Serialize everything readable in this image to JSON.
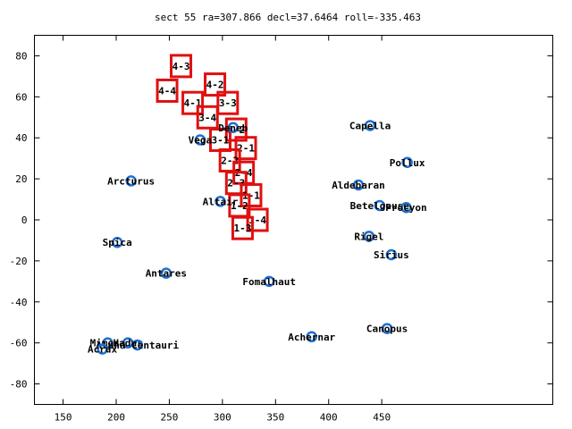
{
  "chart_data": {
    "type": "scatter",
    "title": "sect 55 ra=307.866 decl=37.6464 roll=-335.463",
    "xlabel": "",
    "ylabel": "",
    "xlim": [
      123,
      611
    ],
    "ylim": [
      -90,
      90
    ],
    "x_ticks": [
      150,
      200,
      250,
      300,
      350,
      400,
      450
    ],
    "y_ticks": [
      -80,
      -60,
      -40,
      -20,
      0,
      20,
      40,
      60,
      80
    ],
    "grid": false,
    "colors": {
      "stars": "#1f6fd0",
      "sectors": "#e01010",
      "axes": "#000000",
      "text": "#000000"
    },
    "stars": [
      {
        "name": "Capella",
        "x": 439,
        "y": 46
      },
      {
        "name": "Pollux",
        "x": 474,
        "y": 28
      },
      {
        "name": "Aldebaran",
        "x": 428,
        "y": 17
      },
      {
        "name": "Betelgeuse",
        "x": 448,
        "y": 7
      },
      {
        "name": "Procyon",
        "x": 473,
        "y": 6
      },
      {
        "name": "Rigel",
        "x": 438,
        "y": -8
      },
      {
        "name": "Sirius",
        "x": 459,
        "y": -17
      },
      {
        "name": "Canopus",
        "x": 455,
        "y": -53
      },
      {
        "name": "Achernar",
        "x": 384,
        "y": -57
      },
      {
        "name": "Fomalhaut",
        "x": 344,
        "y": -30
      },
      {
        "name": "Deneb",
        "x": 310,
        "y": 45
      },
      {
        "name": "Vega",
        "x": 279,
        "y": 39
      },
      {
        "name": "Altair",
        "x": 298,
        "y": 9
      },
      {
        "name": "Arcturus",
        "x": 214,
        "y": 19
      },
      {
        "name": "Spica",
        "x": 201,
        "y": -11
      },
      {
        "name": "Antares",
        "x": 247,
        "y": -26
      },
      {
        "name": "Mimosa",
        "x": 192,
        "y": -60
      },
      {
        "name": "Hadar",
        "x": 211,
        "y": -60
      },
      {
        "name": "Alpha Centauri",
        "x": 220,
        "y": -61
      },
      {
        "name": "Acrux",
        "x": 187,
        "y": -63
      }
    ],
    "sectors": [
      {
        "label": "4-3",
        "x": 261,
        "y": 75
      },
      {
        "label": "4-2",
        "x": 293,
        "y": 66
      },
      {
        "label": "4-4",
        "x": 248,
        "y": 63
      },
      {
        "label": "4-1",
        "x": 272,
        "y": 57
      },
      {
        "label": "3-3",
        "x": 305,
        "y": 57
      },
      {
        "label": "3-4",
        "x": 286,
        "y": 50
      },
      {
        "label": "3-2",
        "x": 313,
        "y": 44
      },
      {
        "label": "3-1",
        "x": 298,
        "y": 39
      },
      {
        "label": "2-1",
        "x": 322,
        "y": 35
      },
      {
        "label": "2-2",
        "x": 307,
        "y": 29
      },
      {
        "label": "2-4",
        "x": 320,
        "y": 23
      },
      {
        "label": "2-3",
        "x": 313,
        "y": 18
      },
      {
        "label": "1-1",
        "x": 327,
        "y": 12
      },
      {
        "label": "1-2",
        "x": 316,
        "y": 7
      },
      {
        "label": "1-4",
        "x": 333,
        "y": 0
      },
      {
        "label": "1-3",
        "x": 319,
        "y": -4
      }
    ]
  }
}
